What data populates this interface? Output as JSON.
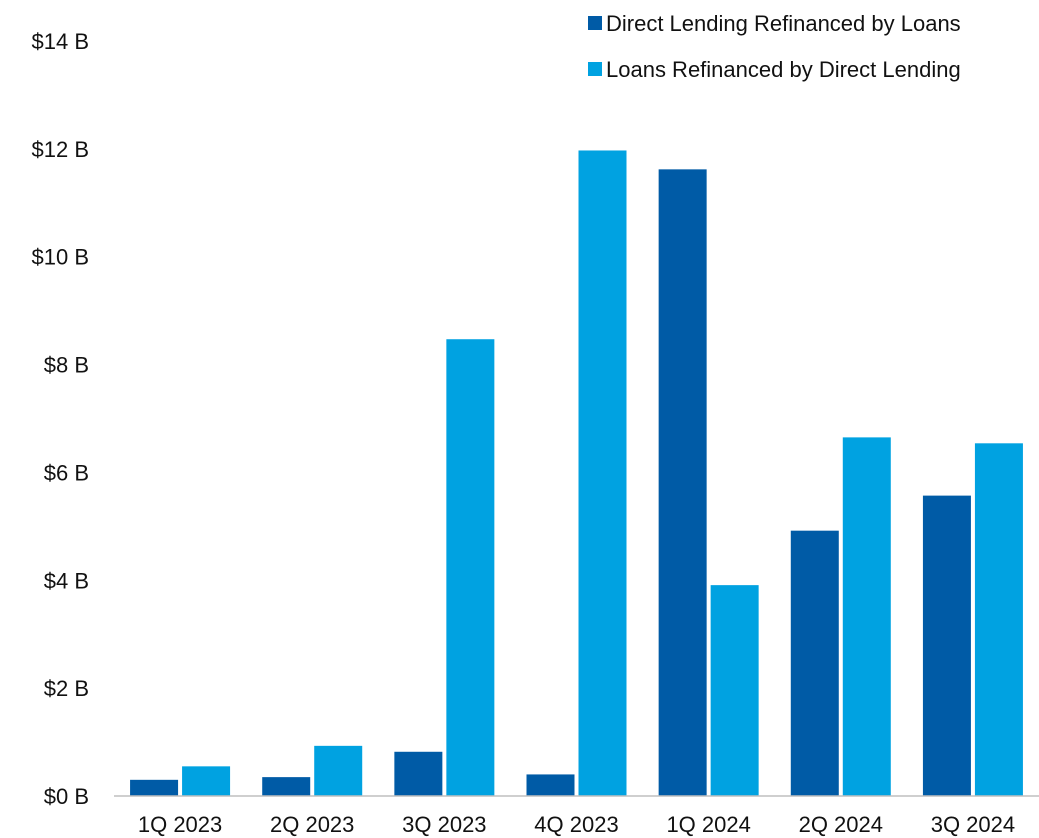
{
  "chart_data": {
    "type": "bar",
    "title": "",
    "xlabel": "",
    "ylabel": "",
    "categories": [
      "1Q 2023",
      "2Q 2023",
      "3Q 2023",
      "4Q 2023",
      "1Q 2024",
      "2Q 2024",
      "3Q 2024"
    ],
    "series": [
      {
        "name": "Direct Lending Refinanced by Loans",
        "color": "#005ba6",
        "values": [
          0.3,
          0.35,
          0.82,
          0.4,
          11.62,
          4.92,
          5.57
        ]
      },
      {
        "name": "Loans Refinanced by Direct Lending",
        "color": "#00a2e1",
        "values": [
          0.55,
          0.93,
          8.47,
          11.97,
          3.91,
          6.65,
          6.54
        ]
      }
    ],
    "ylim": [
      0,
      14
    ],
    "yticks": [
      0,
      2,
      4,
      6,
      8,
      10,
      12,
      14
    ],
    "ytick_labels": [
      "$0 B",
      "$2 B",
      "$4 B",
      "$6 B",
      "$8 B",
      "$10 B",
      "$12 B",
      "$14 B"
    ],
    "grid": false,
    "legend_position": "top-right"
  }
}
